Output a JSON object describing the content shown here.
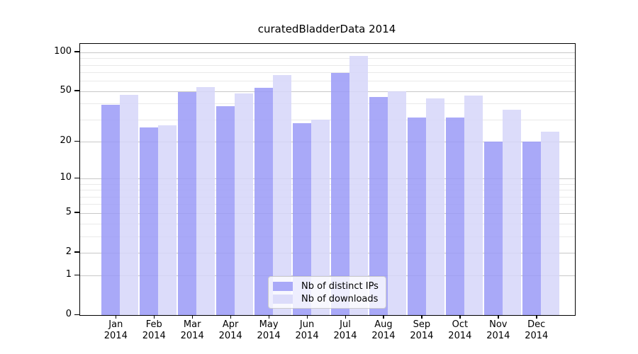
{
  "title": "curatedBladderData 2014",
  "colors": {
    "distinct_ips": "#a9a9f8",
    "downloads": "#dcdcfa",
    "grid_major": "#c8c8c8",
    "grid_minor": "#e9e9e9",
    "axis": "#000000",
    "legend_border": "#cccccc"
  },
  "legend": {
    "items": [
      {
        "label": "Nb of distinct IPs",
        "color_key": "distinct_ips"
      },
      {
        "label": "Nb of downloads",
        "color_key": "downloads"
      }
    ]
  },
  "y_axis": {
    "tick_values": [
      100,
      50,
      20,
      10,
      5,
      2,
      1,
      0
    ],
    "tick_labels": [
      "100",
      "50",
      "20",
      "10",
      "5",
      "2",
      "1",
      "0"
    ],
    "minor_gridline_values": [
      3,
      4,
      6,
      7,
      8,
      9,
      30,
      40,
      60,
      70,
      80,
      90
    ],
    "scale": "log10(1+y)",
    "display_max": 116
  },
  "x_axis": {
    "months": [
      "Jan",
      "Feb",
      "Mar",
      "Apr",
      "May",
      "Jun",
      "Jul",
      "Aug",
      "Sep",
      "Oct",
      "Nov",
      "Dec"
    ],
    "year_label": "2014"
  },
  "chart_data": {
    "type": "bar",
    "title": "curatedBladderData 2014",
    "categories": [
      "Jan 2014",
      "Feb 2014",
      "Mar 2014",
      "Apr 2014",
      "May 2014",
      "Jun 2014",
      "Jul 2014",
      "Aug 2014",
      "Sep 2014",
      "Oct 2014",
      "Nov 2014",
      "Dec 2014"
    ],
    "series": [
      {
        "name": "Nb of distinct IPs",
        "color": "#a9a9f8",
        "values": [
          39,
          26,
          49,
          38,
          53,
          28,
          69,
          45,
          31,
          31,
          20,
          20
        ]
      },
      {
        "name": "Nb of downloads",
        "color": "#dcdcfa",
        "values": [
          47,
          27,
          54,
          48,
          67,
          30,
          94,
          50,
          44,
          46,
          36,
          24
        ]
      }
    ],
    "xlabel": "",
    "ylabel": "",
    "y_scale": "log10(1+y)",
    "y_ticks": [
      0,
      1,
      2,
      5,
      10,
      20,
      50,
      100
    ],
    "ylim": [
      0,
      116
    ],
    "grid": "on",
    "legend_position": "bottom-center-inside"
  }
}
